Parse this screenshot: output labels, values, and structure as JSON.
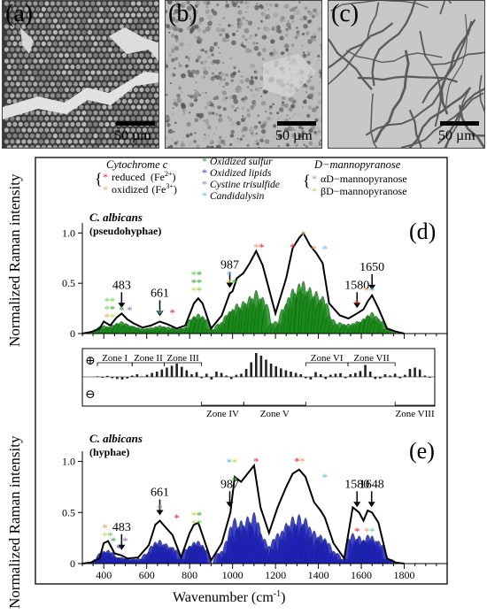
{
  "panels": {
    "a": {
      "label": "(a)",
      "scale": "50 µm"
    },
    "b": {
      "label": "(b)",
      "scale": "50 µm"
    },
    "c": {
      "label": "(c)",
      "scale": "50 µm"
    }
  },
  "legend": {
    "cytochrome_title": "Cytochrome c",
    "reduced": "reduced",
    "reduced_ion": "(Fe",
    "reduced_charge": "2+",
    "oxidized": "oxidized",
    "oxidized_ion": "(Fe",
    "oxidized_charge": "3+",
    "close_paren": ")",
    "oxidized_sulfur": "Oxidized sulfur",
    "oxidized_lipids": "Oxidized lipids",
    "cystine_trisulfide": "Cystine trisulfide",
    "candidalysin": "Candidalysin",
    "mannose_title": "D−mannopyranose",
    "alpha": "αD−mannopyranose",
    "beta": "βD−mannopyranose",
    "colors": {
      "reduced": "#e8262b",
      "oxidized": "#f2a05a",
      "sulfur": "#3aa637",
      "lipids": "#2e3aa6",
      "cystine": "#8a7ab8",
      "candidalysin": "#52c1e0",
      "alpha": "#67d34a",
      "beta": "#c7d44a"
    }
  },
  "zones": {
    "labels": [
      "Zone I",
      "Zone II",
      "Zone III",
      "Zone IV",
      "Zone V",
      "Zone VI",
      "Zone VII",
      "Zone VIII"
    ],
    "plus": "⊕",
    "minus": "⊖"
  },
  "chart_data": [
    {
      "type": "line",
      "panel_label": "(d)",
      "title": "C. albicans",
      "subtitle": "(pseudohyphae)",
      "ylabel": "Normalized Raman intensity",
      "yticks": [
        "0",
        "0.5",
        "1.0"
      ],
      "ylim": [
        0,
        1.1
      ],
      "xlim": [
        300,
        2000
      ],
      "color": "#1a8a1a",
      "annotations": [
        "483",
        "661",
        "987",
        "1580",
        "1650"
      ],
      "x": [
        300,
        350,
        380,
        400,
        430,
        460,
        483,
        510,
        540,
        580,
        620,
        661,
        700,
        740,
        780,
        820,
        840,
        860,
        900,
        950,
        987,
        1000,
        1020,
        1050,
        1080,
        1110,
        1140,
        1200,
        1250,
        1280,
        1310,
        1330,
        1360,
        1390,
        1420,
        1450,
        1500,
        1540,
        1580,
        1610,
        1630,
        1650,
        1680,
        1720,
        1760,
        1800
      ],
      "y": [
        0.0,
        0.02,
        0.05,
        0.12,
        0.08,
        0.16,
        0.2,
        0.14,
        0.1,
        0.06,
        0.08,
        0.12,
        0.09,
        0.05,
        0.08,
        0.3,
        0.35,
        0.3,
        0.05,
        0.18,
        0.4,
        0.42,
        0.55,
        0.6,
        0.7,
        0.82,
        0.68,
        0.2,
        0.55,
        0.85,
        0.95,
        1.0,
        0.88,
        0.8,
        0.7,
        0.3,
        0.18,
        0.15,
        0.2,
        0.24,
        0.32,
        0.38,
        0.25,
        0.05,
        0.02,
        0.0
      ]
    },
    {
      "type": "bar",
      "name": "difference",
      "x": [
        340,
        360,
        380,
        400,
        420,
        440,
        460,
        480,
        500,
        520,
        540,
        560,
        580,
        600,
        620,
        640,
        660,
        680,
        700,
        720,
        740,
        760,
        780,
        800,
        820,
        840,
        860,
        880,
        900,
        920,
        940,
        960,
        980,
        1000,
        1020,
        1040,
        1060,
        1080,
        1100,
        1120,
        1140,
        1160,
        1180,
        1200,
        1220,
        1240,
        1260,
        1280,
        1300,
        1320,
        1340,
        1360,
        1380,
        1400,
        1420,
        1440,
        1460,
        1480,
        1500,
        1520,
        1540,
        1560,
        1580,
        1600,
        1620,
        1640,
        1660,
        1680
      ],
      "values": [
        0.02,
        -0.03,
        0.04,
        -0.05,
        -0.08,
        -0.1,
        -0.06,
        0.05,
        0.1,
        0.02,
        0.08,
        0.15,
        0.2,
        0.28,
        0.35,
        0.42,
        0.5,
        0.38,
        0.25,
        0.1,
        0.18,
        -0.05,
        0.12,
        -0.1,
        0.2,
        0.15,
        0.05,
        -0.08,
        0.08,
        0.12,
        0.3,
        0.55,
        0.9,
        0.8,
        0.65,
        0.5,
        0.4,
        0.32,
        0.25,
        0.2,
        0.15,
        0.1,
        -0.05,
        -0.1,
        0.18,
        0.1,
        -0.08,
        0.08,
        0.12,
        0.14,
        -0.05,
        0.1,
        0.15,
        0.22,
        0.45,
        0.2,
        -0.08,
        -0.06,
        0.1,
        0.05,
        0.12,
        -0.05,
        0.08,
        0.3,
        0.35,
        0.28,
        0.05,
        -0.03
      ]
    },
    {
      "type": "line",
      "panel_label": "(e)",
      "title": "C. albicans",
      "subtitle": "(hyphae)",
      "ylabel": "Normalized Raman intensity",
      "xlabel": "Wavenumber (cm",
      "xlabel_sup": "-1",
      "xlabel_end": ")",
      "xticks": [
        "400",
        "600",
        "800",
        "1000",
        "1200",
        "1400",
        "1600",
        "1800"
      ],
      "yticks": [
        "0",
        "0.5",
        "1.0"
      ],
      "ylim": [
        0,
        1.1
      ],
      "xlim": [
        300,
        2000
      ],
      "color": "#2020c0",
      "annotations": [
        "483",
        "661",
        "987",
        "1580",
        "1648"
      ],
      "x": [
        300,
        340,
        380,
        400,
        420,
        450,
        483,
        510,
        560,
        610,
        640,
        661,
        690,
        720,
        760,
        800,
        820,
        840,
        860,
        900,
        950,
        990,
        1010,
        1040,
        1070,
        1100,
        1130,
        1170,
        1210,
        1250,
        1280,
        1310,
        1340,
        1380,
        1410,
        1430,
        1470,
        1520,
        1560,
        1590,
        1610,
        1630,
        1650,
        1680,
        1720,
        1760,
        1800
      ],
      "y": [
        0.0,
        0.01,
        0.05,
        0.2,
        0.22,
        0.1,
        0.08,
        0.05,
        0.06,
        0.18,
        0.38,
        0.42,
        0.35,
        0.28,
        0.06,
        0.3,
        0.38,
        0.4,
        0.28,
        0.03,
        0.2,
        0.5,
        0.85,
        0.8,
        0.88,
        0.96,
        0.55,
        0.3,
        0.55,
        0.75,
        0.88,
        0.92,
        0.85,
        0.6,
        0.52,
        0.45,
        0.2,
        0.05,
        0.55,
        0.5,
        0.42,
        0.52,
        0.5,
        0.4,
        0.05,
        0.01,
        0.0
      ]
    }
  ]
}
